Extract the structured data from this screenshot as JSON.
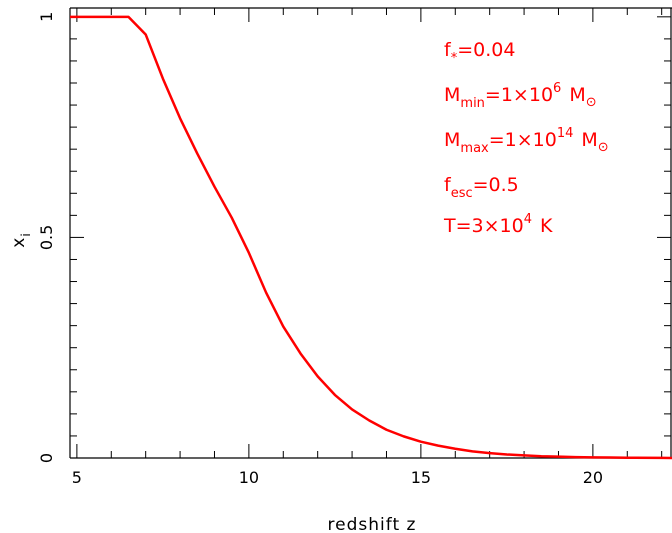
{
  "chart_data": {
    "type": "line",
    "xlabel": "redshift z",
    "ylabel": {
      "base": "x",
      "sub": "i"
    },
    "xlim": [
      4.8,
      22.3
    ],
    "ylim": [
      0,
      1.02
    ],
    "x_ticks": [
      "5",
      "10",
      "15",
      "20"
    ],
    "y_ticks": [
      "0",
      "0.5",
      "1"
    ],
    "colors": {
      "line": "#ff0000",
      "axes": "#000000",
      "annotation": "#ff0000"
    },
    "series": [
      {
        "x": [
          4.8,
          5.0,
          6.5,
          7.0,
          7.5,
          8.0,
          8.5,
          9.0,
          9.5,
          10.0,
          10.5,
          11.0,
          11.5,
          12.0,
          12.5,
          13.0,
          13.5,
          14.0,
          14.5,
          15.0,
          15.5,
          16.0,
          16.5,
          17.0,
          17.5,
          18.0,
          18.5,
          19.0,
          19.5,
          20.0,
          20.5,
          21.0,
          22.0,
          22.3
        ],
        "y": [
          1.0,
          1.0,
          1.0,
          0.96,
          0.86,
          0.77,
          0.69,
          0.615,
          0.545,
          0.465,
          0.375,
          0.298,
          0.237,
          0.185,
          0.143,
          0.11,
          0.085,
          0.064,
          0.049,
          0.037,
          0.028,
          0.021,
          0.015,
          0.011,
          0.008,
          0.006,
          0.004,
          0.003,
          0.002,
          0.0015,
          0.001,
          0.0006,
          0.0002,
          0.0001
        ]
      }
    ],
    "annotations": [
      {
        "base": "f",
        "sub": "*",
        "tail": "=0.04"
      },
      {
        "base": "M",
        "sub": "min",
        "tail": "=1×10",
        "sup": "6",
        "unit": "M",
        "unit_sub": "⊙"
      },
      {
        "base": "M",
        "sub": "max",
        "tail": "=1×10",
        "sup": "14",
        "unit": "M",
        "unit_sub": "⊙"
      },
      {
        "base": "f",
        "sub": "esc",
        "tail": "=0.5"
      },
      {
        "base": "T=3×10",
        "sup": "4",
        "tail2": "K"
      }
    ]
  }
}
